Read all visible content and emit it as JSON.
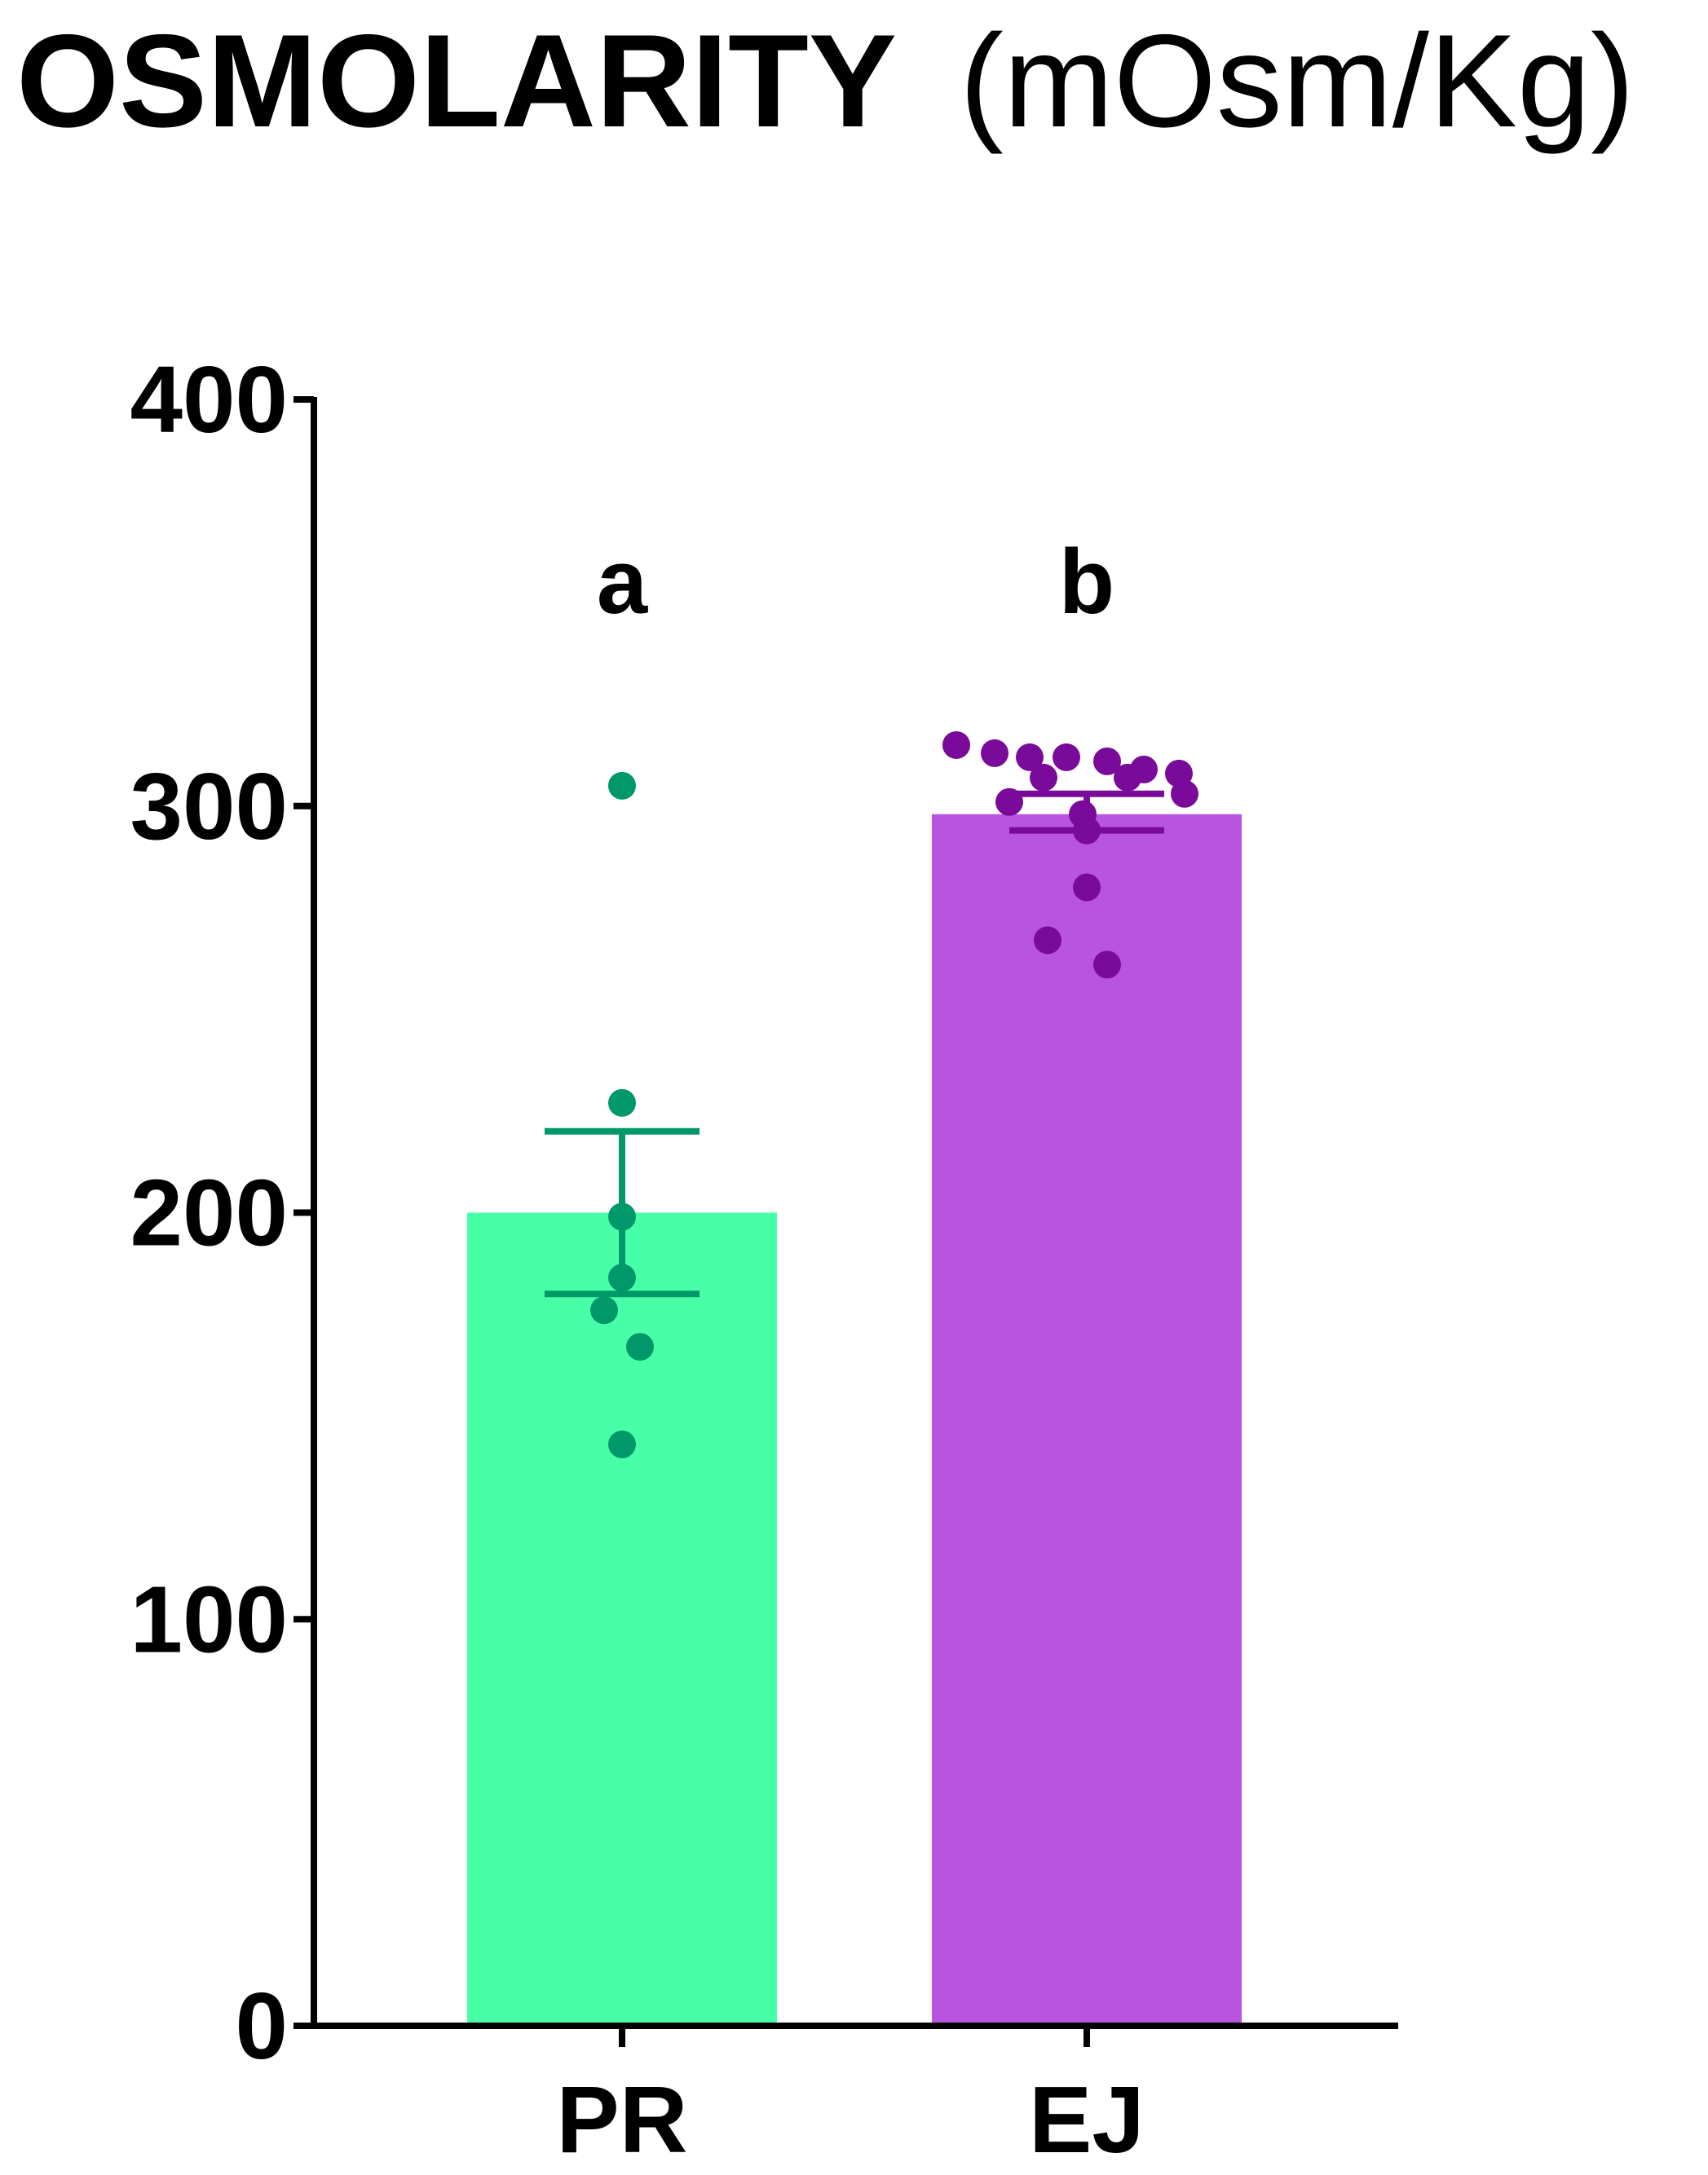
{
  "chart_data": {
    "type": "bar",
    "title_bold": "OSMOLARITY",
    "title_unit": "(mOsm/Kg)",
    "categories": [
      "PR",
      "EJ"
    ],
    "values": [
      200,
      298
    ],
    "error_bars": [
      {
        "low": 180,
        "high": 220
      },
      {
        "low": 294,
        "high": 303
      }
    ],
    "points": [
      [
        305,
        227,
        199,
        184,
        176,
        167,
        143
      ],
      [
        315,
        313,
        312,
        312,
        311,
        309,
        308,
        307,
        307,
        303,
        301,
        298,
        294,
        280,
        267,
        261
      ]
    ],
    "significance_labels": [
      "a",
      "b"
    ],
    "ylim": [
      0,
      400
    ],
    "yticks": [
      0,
      100,
      200,
      300,
      400
    ],
    "grid": false,
    "colors": {
      "bars": [
        "#47FFA6",
        "#B954DE"
      ],
      "markers": [
        "#009868",
        "#7A0A9A"
      ],
      "axis": "#000000"
    }
  }
}
